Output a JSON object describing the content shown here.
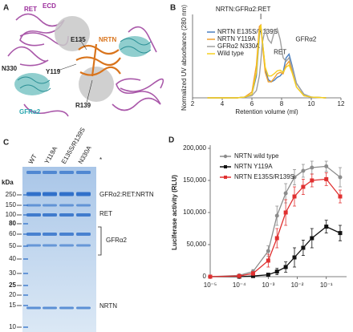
{
  "panels": {
    "a": {
      "label": "A",
      "ret": "RET",
      "ret_sup": "ECD",
      "n330": "N330",
      "e135": "E135",
      "nrtn": "NRTN",
      "y119": "Y119",
      "r139": "R139",
      "gfra2": "GFRα2"
    },
    "c": {
      "label": "C",
      "kda": "kDa",
      "lanes": [
        "WT",
        "Y119A",
        "E135S/R139S",
        "N330A"
      ],
      "markers": [
        {
          "text": "250",
          "bold": false
        },
        {
          "text": "150",
          "bold": false
        },
        {
          "text": "100",
          "bold": false
        },
        {
          "text": "80",
          "bold": true
        },
        {
          "text": "60",
          "bold": false
        },
        {
          "text": "50",
          "bold": false
        },
        {
          "text": "40",
          "bold": false
        },
        {
          "text": "30",
          "bold": false
        },
        {
          "text": "25",
          "bold": true
        },
        {
          "text": "20",
          "bold": false
        },
        {
          "text": "15",
          "bold": false
        },
        {
          "text": "10",
          "bold": false
        }
      ],
      "annotations": {
        "star": "*",
        "complex": "GFRα2:RET:NRTN",
        "ret": "RET",
        "gfra2": "GFRα2",
        "nrtn": "NRTN"
      }
    }
  },
  "chart_data": [
    {
      "type": "line",
      "panel_label": "B",
      "xlabel": "Retention volume (ml)",
      "ylabel": "Normalized UV absorbance (280 nm)",
      "annotations": {
        "complex": "NRTN:GFRα2:RET",
        "ret": "RET",
        "gfra2": "GFRα2"
      },
      "x": [
        3,
        4,
        5,
        5.5,
        6,
        6.3,
        6.5,
        6.6,
        6.7,
        6.9,
        7.1,
        7.3,
        7.5,
        7.7,
        7.9,
        8.1,
        8.3,
        8.5,
        8.7,
        9,
        9.5,
        10,
        11
      ],
      "series": [
        {
          "name": "NRTN E135S/R139S",
          "color": "#4a7fc1",
          "values": [
            0,
            0,
            0,
            0.01,
            0.05,
            0.3,
            0.85,
            0.97,
            0.8,
            0.4,
            0.25,
            0.22,
            0.24,
            0.28,
            0.3,
            0.35,
            0.55,
            0.6,
            0.45,
            0.2,
            0.05,
            0.01,
            0
          ]
        },
        {
          "name": "NRTN Y119A",
          "color": "#f0a030",
          "values": [
            0,
            0,
            0,
            0.01,
            0.08,
            0.45,
            0.98,
            1.0,
            0.75,
            0.35,
            0.22,
            0.22,
            0.27,
            0.33,
            0.35,
            0.33,
            0.45,
            0.5,
            0.38,
            0.15,
            0.03,
            0.01,
            0
          ]
        },
        {
          "name": "GFRα2 N330A",
          "color": "#a0a0a0",
          "values": [
            0,
            0,
            0,
            0.01,
            0.03,
            0.1,
            0.3,
            0.5,
            0.75,
            0.95,
            0.8,
            0.75,
            0.9,
            0.95,
            0.8,
            0.55,
            0.5,
            0.55,
            0.42,
            0.2,
            0.05,
            0.01,
            0
          ]
        },
        {
          "name": "Wild type",
          "color": "#f5d020",
          "values": [
            0,
            0,
            0,
            0.01,
            0.05,
            0.35,
            0.9,
            1.0,
            0.8,
            0.42,
            0.3,
            0.3,
            0.33,
            0.37,
            0.38,
            0.35,
            0.42,
            0.45,
            0.35,
            0.15,
            0.03,
            0.01,
            0
          ]
        }
      ],
      "xlim": [
        2,
        12
      ],
      "xticks": [
        2,
        4,
        6,
        8,
        10,
        12
      ],
      "ylim": [
        0,
        1.1
      ],
      "legend": "upper left"
    },
    {
      "type": "line",
      "panel_label": "D",
      "ylabel": "Luciferase activity (RLU)",
      "log_x": true,
      "x": [
        1e-05,
        0.0001,
        0.0003,
        0.001,
        0.002,
        0.004,
        0.008,
        0.016,
        0.032,
        0.1,
        0.3
      ],
      "series": [
        {
          "name": "NRTN wild type",
          "color": "#8c8c8c",
          "marker": "circle",
          "values": [
            0,
            2000,
            8000,
            40000,
            95000,
            130000,
            155000,
            165000,
            170000,
            172000,
            155000
          ],
          "errors": [
            0,
            1000,
            3000,
            8000,
            15000,
            15000,
            12000,
            10000,
            10000,
            8000,
            15000
          ]
        },
        {
          "name": "NRTN Y119A",
          "color": "#111111",
          "marker": "square",
          "values": [
            0,
            0,
            1000,
            3000,
            8000,
            15000,
            30000,
            45000,
            60000,
            78000,
            68000
          ],
          "errors": [
            0,
            0,
            1000,
            2000,
            5000,
            8000,
            15000,
            12000,
            15000,
            10000,
            12000
          ]
        },
        {
          "name": "NRTN E135S/R139S",
          "color": "#e03030",
          "marker": "square",
          "values": [
            0,
            1000,
            5000,
            25000,
            60000,
            100000,
            125000,
            140000,
            150000,
            152000,
            125000
          ],
          "errors": [
            0,
            1000,
            3000,
            10000,
            15000,
            20000,
            15000,
            12000,
            10000,
            10000,
            10000
          ]
        }
      ],
      "xlim": [
        1e-05,
        0.5
      ],
      "xticks": [
        {
          "value": 1e-05,
          "label": "10⁻⁵"
        },
        {
          "value": 0.0001,
          "label": "10⁻⁴"
        },
        {
          "value": 0.001,
          "label": "10⁻³"
        },
        {
          "value": 0.01,
          "label": "10⁻²"
        },
        {
          "value": 0.1,
          "label": "10⁻¹"
        }
      ],
      "ylim": [
        0,
        200000
      ],
      "yticks": [
        0,
        {
          "value": 50000,
          "label": "50,000"
        },
        {
          "value": 100000,
          "label": "100,000"
        },
        {
          "value": 150000,
          "label": "150,000"
        },
        {
          "value": 200000,
          "label": "200,000"
        }
      ],
      "legend": "upper left"
    }
  ]
}
